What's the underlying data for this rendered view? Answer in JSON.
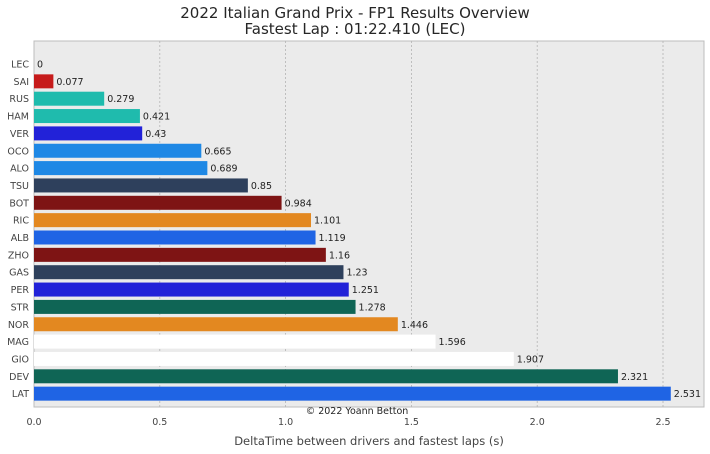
{
  "chart_data": {
    "type": "bar",
    "orientation": "horizontal",
    "title": "2022 Italian Grand Prix - FP1 Results Overview",
    "subtitle": "Fastest Lap : 01:22.410 (LEC)",
    "xlabel": "DeltaTime between drivers and fastest laps (s)",
    "ylabel": "",
    "xlim": [
      0,
      2.66
    ],
    "xticks": [
      0.0,
      0.5,
      1.0,
      1.5,
      2.0,
      2.5
    ],
    "xtick_labels": [
      "0.0",
      "0.5",
      "1.0",
      "1.5",
      "2.0",
      "2.5"
    ],
    "grid": true,
    "annotation": "© 2022 Yoann Betton",
    "categories": [
      "LEC",
      "SAI",
      "RUS",
      "HAM",
      "VER",
      "OCO",
      "ALO",
      "TSU",
      "BOT",
      "RIC",
      "ALB",
      "ZHO",
      "GAS",
      "PER",
      "STR",
      "NOR",
      "MAG",
      "GIO",
      "DEV",
      "LAT"
    ],
    "values": [
      0,
      0.077,
      0.279,
      0.421,
      0.43,
      0.665,
      0.689,
      0.85,
      0.984,
      1.101,
      1.119,
      1.16,
      1.23,
      1.251,
      1.278,
      1.446,
      1.596,
      1.907,
      2.321,
      2.531
    ],
    "value_labels": [
      "0",
      "0.077",
      "0.279",
      "0.421",
      "0.43",
      "0.665",
      "0.689",
      "0.85",
      "0.984",
      "1.101",
      "1.119",
      "1.16",
      "1.23",
      "1.251",
      "1.278",
      "1.446",
      "1.596",
      "1.907",
      "2.321",
      "2.531"
    ],
    "colors": [
      "#d00000",
      "#c61b1b",
      "#1fbbad",
      "#1fbbad",
      "#2222d8",
      "#1e88e5",
      "#1e88e5",
      "#2e405c",
      "#7e1414",
      "#e38820",
      "#1f64e4",
      "#7e1414",
      "#2e405c",
      "#2222d8",
      "#0f6555",
      "#e38820",
      "#ffffff",
      "#ffffff",
      "#0f6555",
      "#1f64e4"
    ]
  }
}
